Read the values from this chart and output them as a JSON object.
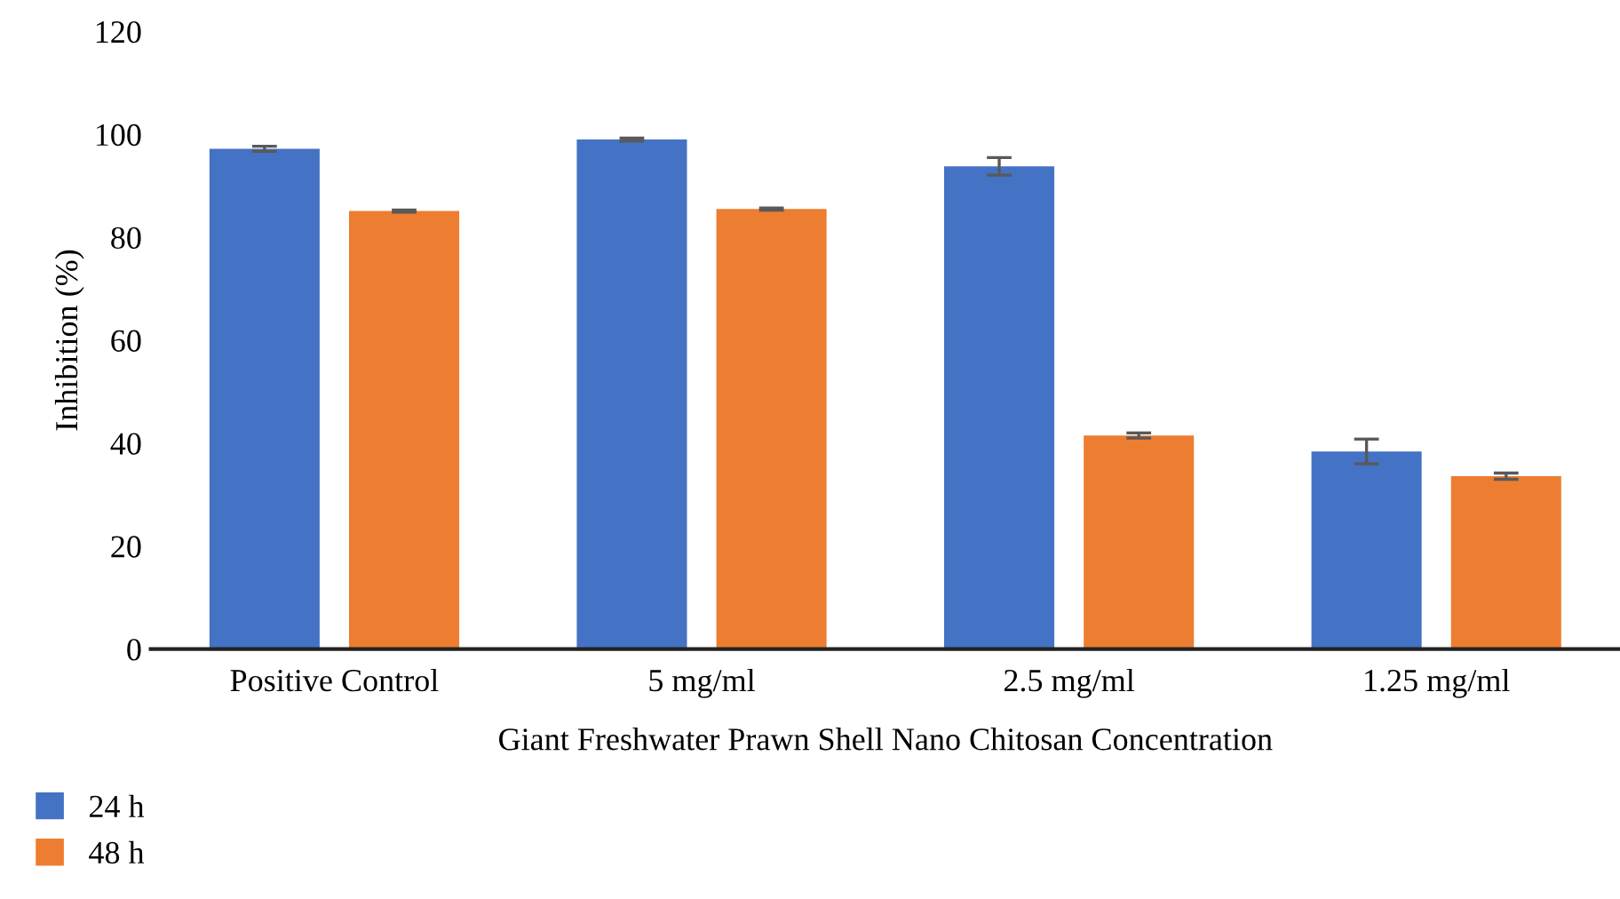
{
  "chart_data": {
    "type": "bar",
    "xlabel": "Giant Freshwater Prawn Shell Nano Chitosan Concentration",
    "ylabel": "Inhibition (%)",
    "categories": [
      "Positive Control",
      "5 mg/ml",
      "2.5 mg/ml",
      "1.25 mg/ml"
    ],
    "series": [
      {
        "name": "24 h",
        "color": "#4472c4",
        "values": [
          97.2,
          99.0,
          93.8,
          38.4
        ],
        "errors": [
          0.5,
          0.3,
          1.7,
          2.4
        ]
      },
      {
        "name": "48 h",
        "color": "#ed7d31",
        "values": [
          85.1,
          85.5,
          41.5,
          33.6
        ],
        "errors": [
          0.2,
          0.2,
          0.5,
          0.6
        ]
      }
    ],
    "ylim": [
      0,
      120
    ],
    "yticks": [
      0,
      20,
      40,
      60,
      80,
      100,
      120
    ],
    "grid": false,
    "legend": "bottom left"
  }
}
